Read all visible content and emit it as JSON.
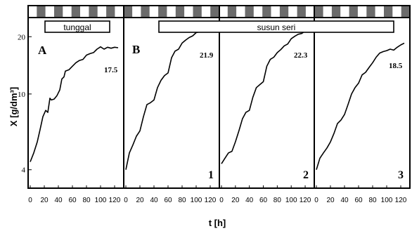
{
  "chart_data": {
    "type": "line",
    "xlabel": "t [h]",
    "ylabel": "X [g/dm³]",
    "y_scale": "log",
    "ylim": [
      3.2,
      25
    ],
    "xlim": [
      0,
      125
    ],
    "x_ticks": [
      "0",
      "20",
      "40",
      "60",
      "80",
      "100",
      "120"
    ],
    "y_ticks": [
      {
        "value": 4,
        "label": "4"
      },
      {
        "value": 10,
        "label": "10"
      },
      {
        "value": 20,
        "label": "20"
      }
    ],
    "grid": false,
    "light_dark_bar": true,
    "labels": {
      "single": "tunggal",
      "series": "susun seri"
    },
    "panels": [
      {
        "letter": "A",
        "number": "",
        "final_label": "17.5",
        "x": [
          0,
          5,
          10,
          14,
          18,
          22,
          25,
          28,
          30,
          34,
          38,
          42,
          45,
          48,
          50,
          55,
          60,
          65,
          70,
          75,
          80,
          85,
          90,
          95,
          100,
          105,
          110,
          115,
          120,
          125
        ],
        "y": [
          4.4,
          4.9,
          5.6,
          6.5,
          7.6,
          8.2,
          8.0,
          9.5,
          9.3,
          9.4,
          9.8,
          10.5,
          12.0,
          12.3,
          13.2,
          13.4,
          14.0,
          14.6,
          15.0,
          15.2,
          16.0,
          16.3,
          16.5,
          17.2,
          17.7,
          17.2,
          17.6,
          17.4,
          17.6,
          17.5
        ]
      },
      {
        "letter": "B",
        "number": "1",
        "final_label": "21.9",
        "x": [
          0,
          5,
          10,
          15,
          20,
          25,
          30,
          35,
          40,
          45,
          50,
          55,
          60,
          65,
          70,
          75,
          80,
          85,
          90,
          95,
          100,
          105,
          110,
          115,
          120,
          125
        ],
        "y": [
          4.0,
          4.9,
          5.4,
          6.0,
          6.4,
          7.6,
          8.8,
          9.0,
          9.3,
          10.8,
          11.8,
          12.5,
          12.9,
          15.5,
          16.8,
          17.2,
          18.5,
          19.2,
          19.8,
          20.2,
          21.0,
          21.2,
          21.4,
          21.4,
          21.6,
          21.9
        ]
      },
      {
        "letter": "",
        "number": "2",
        "final_label": "22.3",
        "x": [
          0,
          5,
          10,
          15,
          20,
          25,
          30,
          35,
          40,
          45,
          50,
          55,
          60,
          65,
          70,
          75,
          80,
          85,
          90,
          95,
          100,
          105,
          110,
          115,
          120,
          125
        ],
        "y": [
          4.3,
          4.6,
          4.9,
          5.0,
          5.6,
          6.4,
          7.4,
          8.0,
          8.2,
          9.6,
          10.8,
          11.2,
          11.6,
          14.0,
          15.2,
          15.6,
          16.5,
          17.1,
          17.9,
          18.3,
          19.5,
          20.1,
          20.6,
          20.8,
          21.4,
          22.3
        ]
      },
      {
        "letter": "",
        "number": "3",
        "final_label": "18.5",
        "x": [
          0,
          5,
          10,
          15,
          20,
          25,
          30,
          35,
          40,
          45,
          50,
          55,
          60,
          65,
          70,
          75,
          80,
          85,
          90,
          95,
          100,
          105,
          110,
          115,
          120,
          125
        ],
        "y": [
          4.0,
          4.6,
          4.9,
          5.2,
          5.6,
          6.2,
          7.0,
          7.3,
          7.8,
          8.8,
          10.0,
          10.8,
          11.4,
          12.6,
          13.0,
          13.8,
          14.6,
          15.6,
          16.4,
          16.7,
          16.9,
          17.2,
          17.0,
          17.6,
          18.1,
          18.5
        ]
      }
    ]
  }
}
